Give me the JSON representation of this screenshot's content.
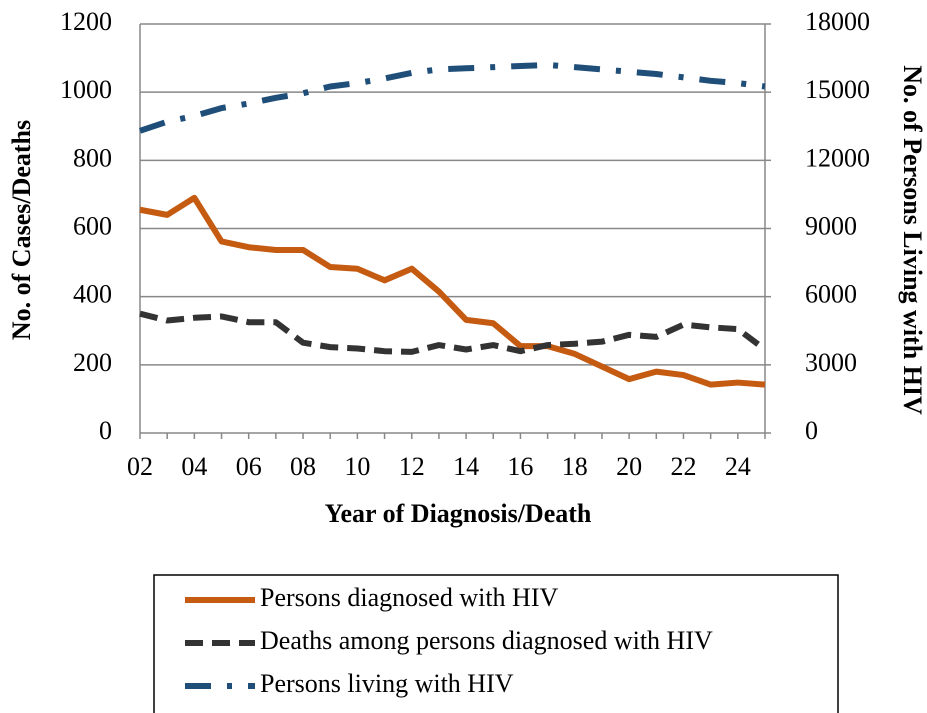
{
  "chart_data": {
    "type": "line",
    "x_label": "Year of Diagnosis/Death",
    "y_label": "No. of Cases/Deaths",
    "y2_label": "No. of Persons Living with HIV",
    "categories": [
      "02",
      null,
      "04",
      null,
      "06",
      null,
      "08",
      null,
      "10",
      null,
      "12",
      null,
      "14",
      null,
      "16",
      null,
      "18",
      null,
      "20",
      null,
      "22",
      null,
      "24",
      null
    ],
    "ylim": [
      0,
      1200
    ],
    "yticks": [
      0,
      200,
      400,
      600,
      800,
      1000,
      1200
    ],
    "y2lim": [
      0,
      18000
    ],
    "y2ticks": [
      0,
      3000,
      6000,
      9000,
      12000,
      15000,
      18000
    ],
    "grid": true,
    "legend": "bottom",
    "series": [
      {
        "name": "Persons diagnosed with HIV",
        "color": "#c55a11",
        "dash": "solid",
        "values": [
          655,
          640,
          690,
          562,
          545,
          537,
          537,
          487,
          482,
          448,
          482,
          415,
          332,
          322,
          255,
          255,
          232,
          195,
          158,
          180,
          170,
          142,
          148,
          142
        ]
      },
      {
        "name": "Deaths among persons diagnosed with HIV",
        "color": "#333333",
        "dash": "dash",
        "values": [
          350,
          330,
          338,
          342,
          325,
          325,
          265,
          252,
          248,
          240,
          238,
          258,
          245,
          258,
          240,
          258,
          262,
          268,
          288,
          282,
          318,
          310,
          305,
          245
        ]
      },
      {
        "name": "Persons living with HIV",
        "color": "#1f4e79",
        "dash": "dash-dot",
        "axis": "y2",
        "values": [
          13300,
          13700,
          13950,
          14300,
          14500,
          14750,
          14950,
          15250,
          15400,
          15600,
          15850,
          16000,
          16050,
          16100,
          16150,
          16200,
          16100,
          16000,
          15900,
          15800,
          15650,
          15500,
          15400,
          15250
        ]
      }
    ]
  }
}
